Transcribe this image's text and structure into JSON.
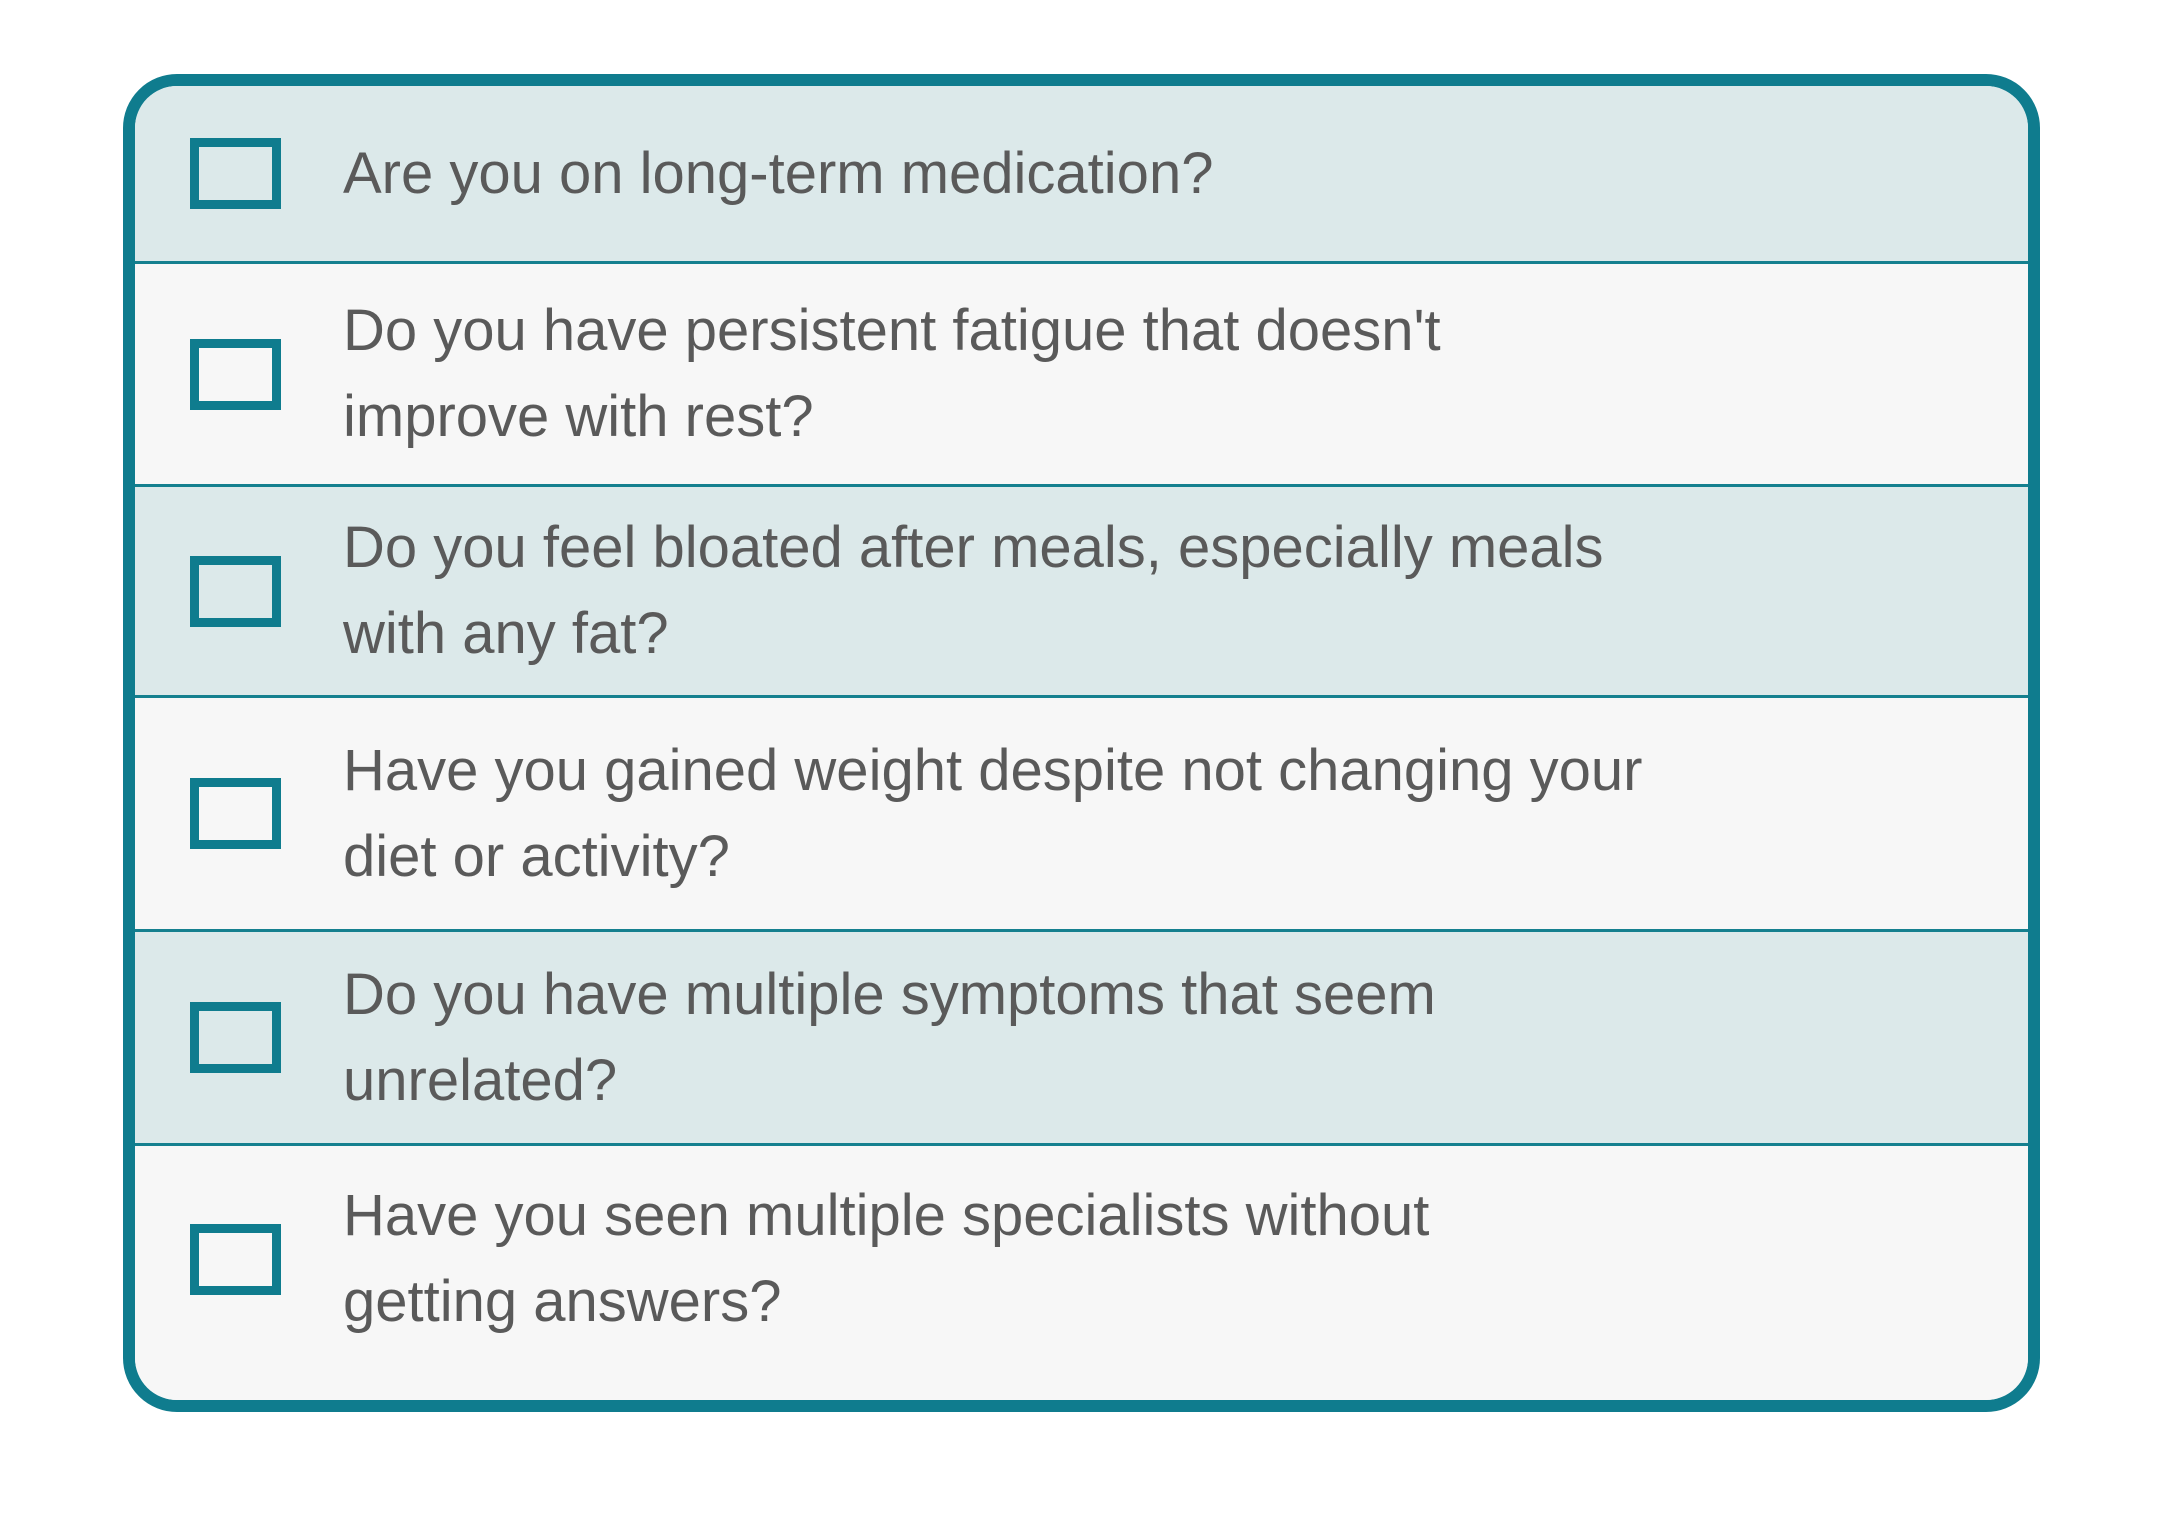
{
  "checklist": {
    "items": [
      {
        "text": "Are you on long-term medication?",
        "checked": false
      },
      {
        "text": "Do you have persistent fatigue that doesn't\nimprove with rest?",
        "checked": false
      },
      {
        "text": "Do you feel bloated after meals, especially meals\nwith any fat?",
        "checked": false
      },
      {
        "text": "Have you gained weight despite not changing your\ndiet or activity?",
        "checked": false
      },
      {
        "text": "Do you have multiple symptoms that seem\nunrelated?",
        "checked": false
      },
      {
        "text": "Have you seen multiple specialists without\ngetting answers?",
        "checked": false
      }
    ]
  },
  "colors": {
    "accent_teal": "#0F7C8E",
    "divider_teal": "#15808F",
    "row_tint": "#DCE9EA",
    "row_plain": "#F7F7F7",
    "question_text": "#5A5A5A",
    "page_background": "#FFFFFF"
  }
}
